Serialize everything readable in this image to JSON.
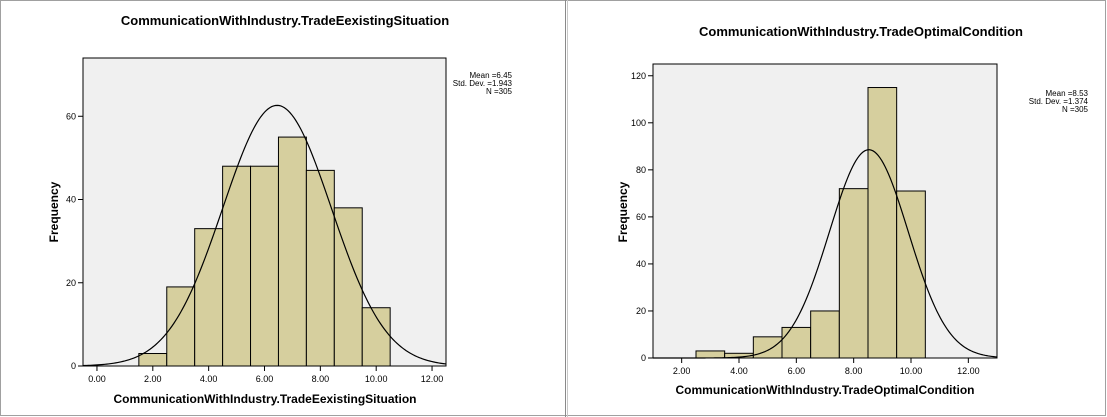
{
  "chart_data": [
    {
      "type": "bar",
      "title": "CommunicationWithIndustry.TradeEexistingSituation",
      "xlabel": "CommunicationWithIndustry.TradeEexistingSituation",
      "ylabel": "Frequency",
      "xlim": [
        -0.5,
        12.5
      ],
      "ylim": [
        0,
        74
      ],
      "xticks": [
        0,
        2,
        4,
        6,
        8,
        10,
        12
      ],
      "xtick_labels": [
        "0.00",
        "2.00",
        "4.00",
        "6.00",
        "8.00",
        "10.00",
        "12.00"
      ],
      "yticks": [
        0,
        20,
        40,
        60
      ],
      "ytick_labels": [
        "0",
        "20",
        "40",
        "60"
      ],
      "bins": [
        {
          "start": 1.5,
          "end": 2.5,
          "value": 3
        },
        {
          "start": 2.5,
          "end": 3.5,
          "value": 19
        },
        {
          "start": 3.5,
          "end": 4.5,
          "value": 33
        },
        {
          "start": 4.5,
          "end": 5.5,
          "value": 48
        },
        {
          "start": 5.5,
          "end": 6.5,
          "value": 48
        },
        {
          "start": 6.5,
          "end": 7.5,
          "value": 55
        },
        {
          "start": 7.5,
          "end": 8.5,
          "value": 47
        },
        {
          "start": 8.5,
          "end": 9.5,
          "value": 38
        },
        {
          "start": 9.5,
          "end": 10.5,
          "value": 14
        }
      ],
      "normal_curve": {
        "mean": 6.45,
        "std": 1.943,
        "n": 305,
        "bin_width": 1
      },
      "stats": [
        "Mean =6.45",
        "Std. Dev. =1.943",
        "N =305"
      ],
      "bar_color": "#d6cf9e",
      "plot_bg": "#f0f0f0"
    },
    {
      "type": "bar",
      "title": "CommunicationWithIndustry.TradeOptimalCondition",
      "xlabel": "CommunicationWithIndustry.TradeOptimalCondition",
      "ylabel": "Frequency",
      "xlim": [
        1.0,
        13.0
      ],
      "ylim": [
        0,
        125
      ],
      "xticks": [
        2,
        4,
        6,
        8,
        10,
        12
      ],
      "xtick_labels": [
        "2.00",
        "4.00",
        "6.00",
        "8.00",
        "10.00",
        "12.00"
      ],
      "yticks": [
        0,
        20,
        40,
        60,
        80,
        100,
        120
      ],
      "ytick_labels": [
        "0",
        "20",
        "40",
        "60",
        "80",
        "100",
        "120"
      ],
      "bins": [
        {
          "start": 2.5,
          "end": 3.5,
          "value": 3
        },
        {
          "start": 3.5,
          "end": 4.5,
          "value": 2
        },
        {
          "start": 4.5,
          "end": 5.5,
          "value": 9
        },
        {
          "start": 5.5,
          "end": 6.5,
          "value": 13
        },
        {
          "start": 6.5,
          "end": 7.5,
          "value": 20
        },
        {
          "start": 7.5,
          "end": 8.5,
          "value": 72
        },
        {
          "start": 8.5,
          "end": 9.5,
          "value": 115
        },
        {
          "start": 9.5,
          "end": 10.5,
          "value": 71
        }
      ],
      "normal_curve": {
        "mean": 8.53,
        "std": 1.374,
        "n": 305,
        "bin_width": 1
      },
      "stats": [
        "Mean =8.53",
        "Std. Dev. =1.374",
        "N =305"
      ],
      "bar_color": "#d6cf9e",
      "plot_bg": "#f0f0f0"
    }
  ]
}
